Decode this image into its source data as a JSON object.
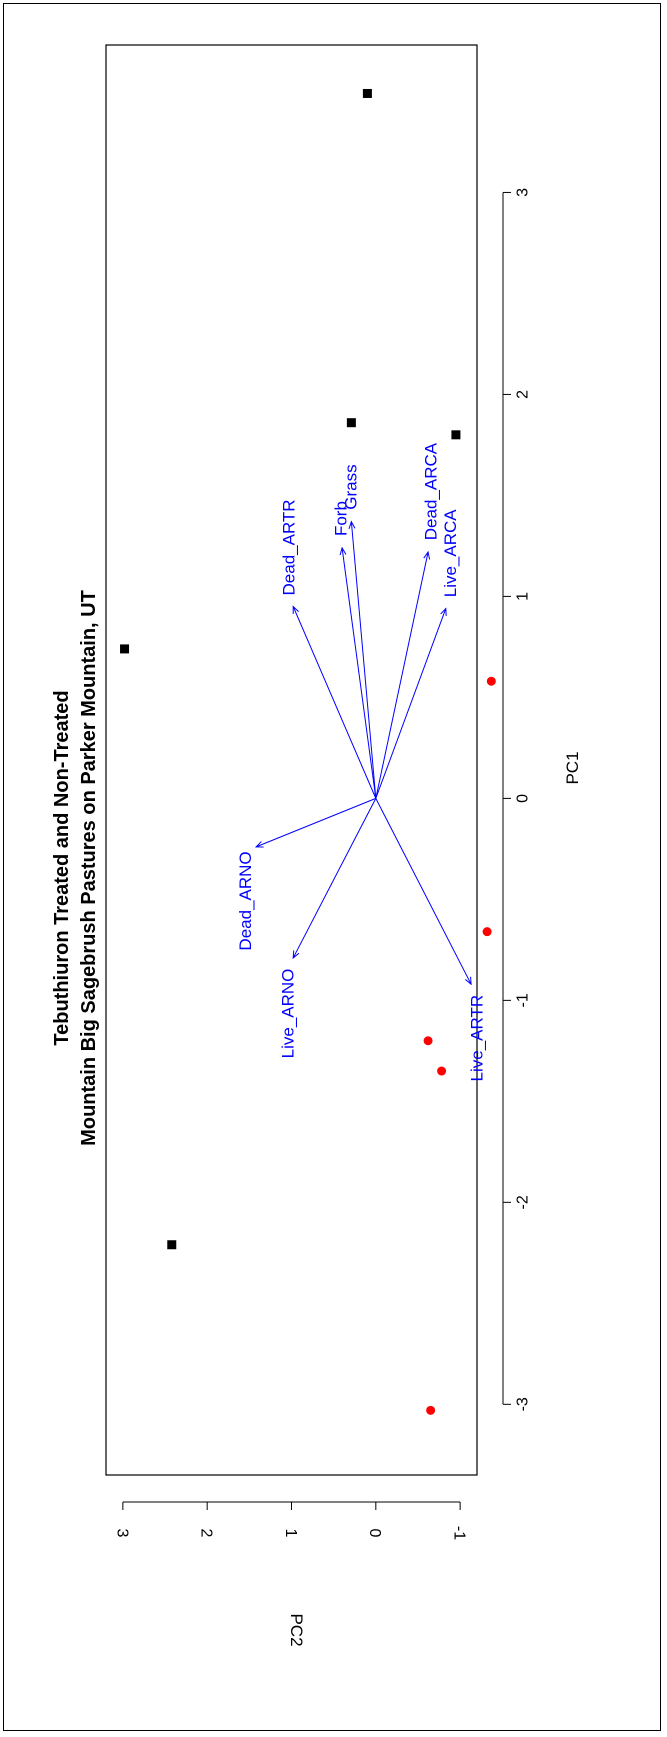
{
  "chart_data": {
    "type": "scatter",
    "title": [
      "Tebuthiuron Treated and Non-Treated",
      "Mountain Big Sagebrush Pastures on Parker Mountain, UT"
    ],
    "xlabel": "PC1",
    "ylabel": "PC2",
    "xlim": [
      -3.35,
      3.73
    ],
    "ylim": [
      -1.2,
      3.2
    ],
    "xticks": [
      -3,
      -2,
      -1,
      0,
      1,
      2,
      3
    ],
    "yticks": [
      -1,
      0,
      1,
      2,
      3
    ],
    "xtick_labels": [
      "-3",
      "-2",
      "-1",
      "0",
      "1",
      "2",
      "3"
    ],
    "ytick_labels": [
      "-1",
      "0",
      "1",
      "2",
      "3"
    ],
    "series": [
      {
        "marker": "square",
        "color": "#000000",
        "points": [
          {
            "x": 3.49,
            "y": 0.1
          },
          {
            "x": 1.86,
            "y": 0.29
          },
          {
            "x": 1.8,
            "y": -0.95
          },
          {
            "x": 0.74,
            "y": 2.98
          },
          {
            "x": -2.21,
            "y": 2.42
          }
        ]
      },
      {
        "marker": "circle",
        "color": "#ff0000",
        "points": [
          {
            "x": 0.58,
            "y": -1.37
          },
          {
            "x": -0.66,
            "y": -1.32
          },
          {
            "x": -1.2,
            "y": -0.62
          },
          {
            "x": -1.35,
            "y": -0.78
          },
          {
            "x": -3.03,
            "y": -0.65
          }
        ]
      }
    ],
    "loadings": {
      "color": "#0000ff",
      "origin": {
        "x": 0,
        "y": 0
      },
      "vectors": [
        {
          "label": "Grass",
          "x": 1.37,
          "y": 0.29
        },
        {
          "label": "Forb",
          "x": 1.24,
          "y": 0.4
        },
        {
          "label": "Dead_ARTR",
          "x": 0.95,
          "y": 0.98
        },
        {
          "label": "Dead_ARCA",
          "x": 1.22,
          "y": -0.62
        },
        {
          "label": "Live_ARCA",
          "x": 0.94,
          "y": -0.83
        },
        {
          "label": "Dead_ARNO",
          "x": -0.24,
          "y": 1.42
        },
        {
          "label": "Live_ARNO",
          "x": -0.79,
          "y": 0.98
        },
        {
          "label": "Live_ARTR",
          "x": -0.92,
          "y": -1.13
        }
      ]
    }
  }
}
